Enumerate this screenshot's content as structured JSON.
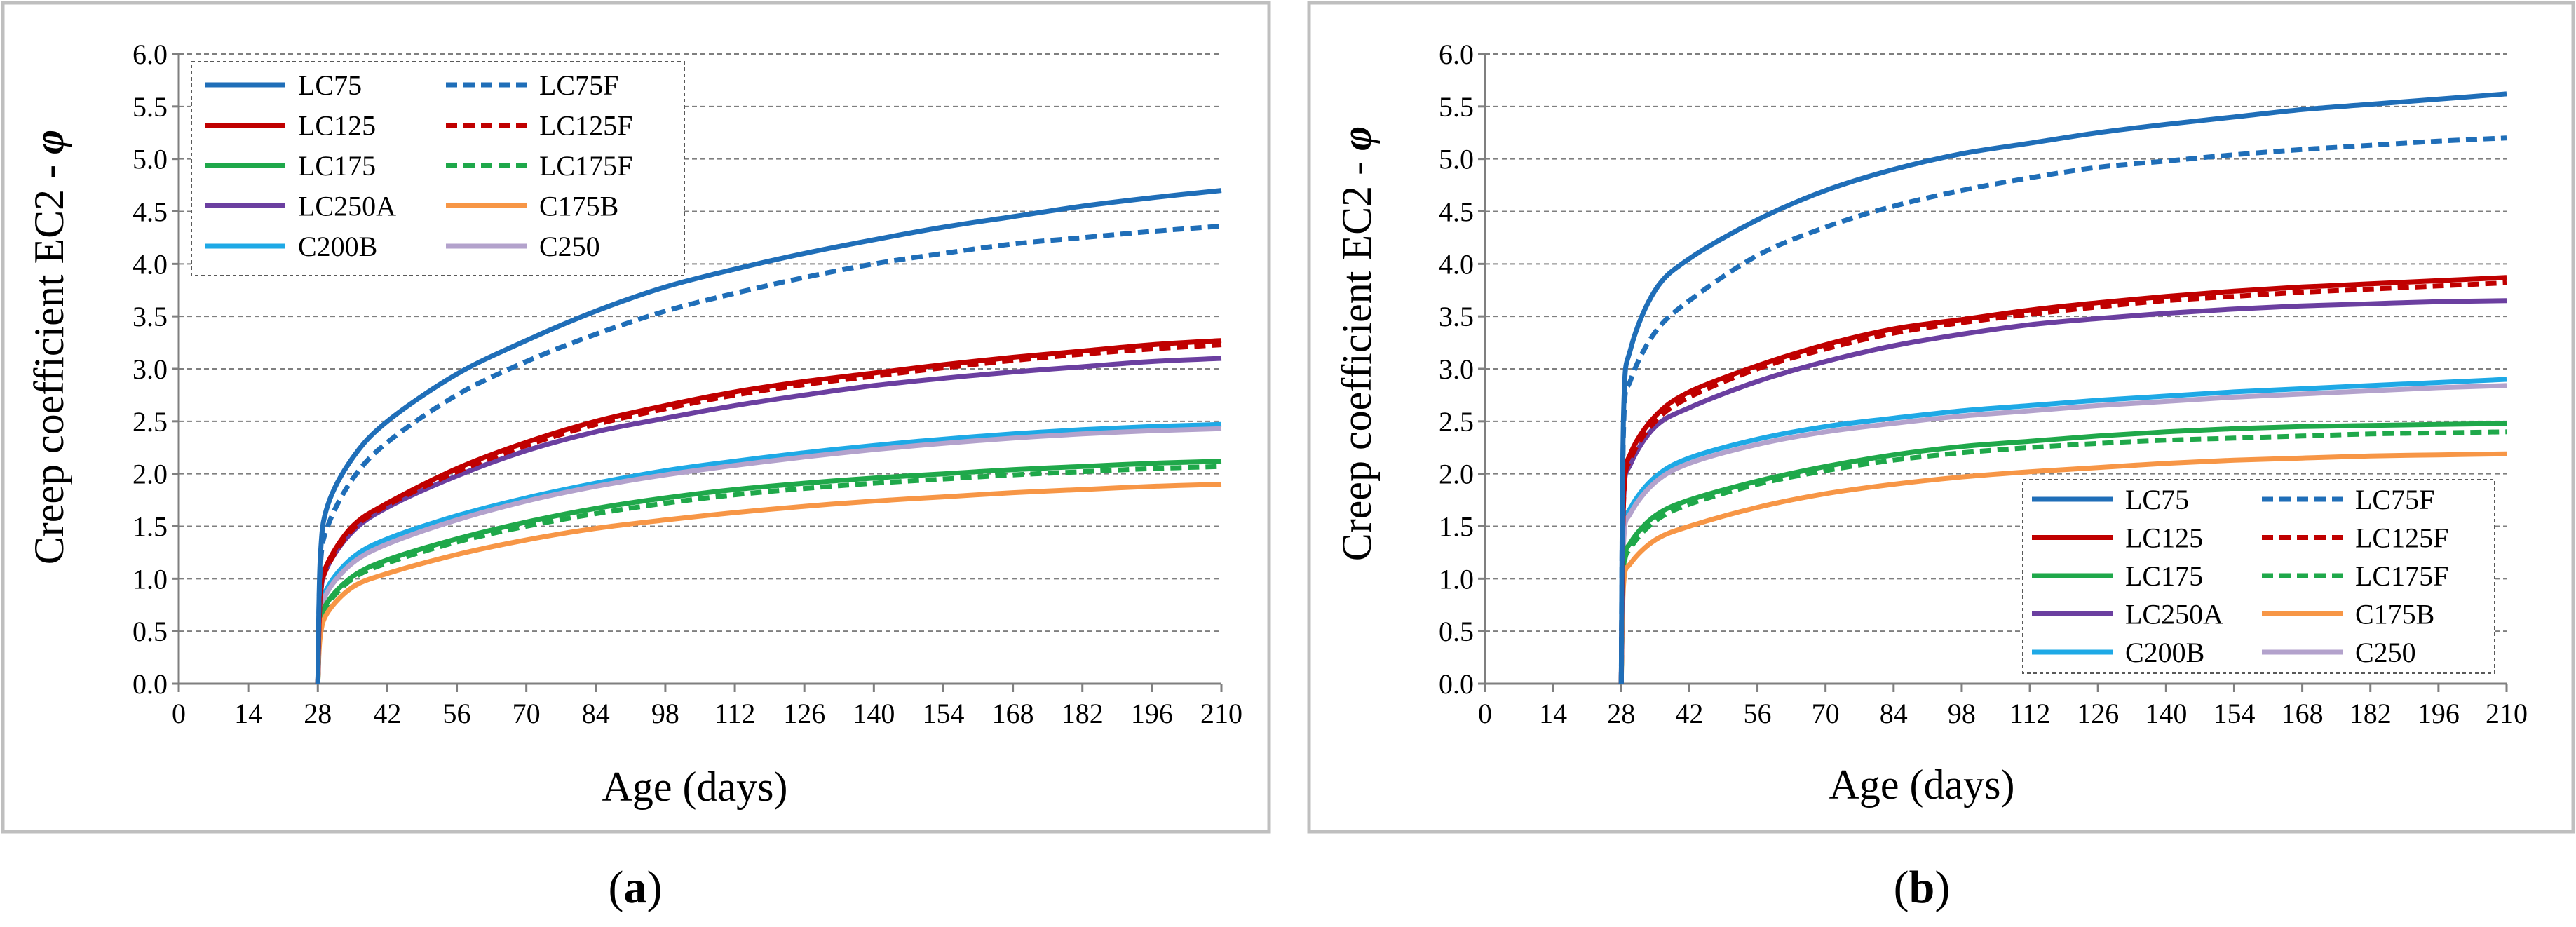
{
  "chart_data": [
    {
      "type": "line",
      "caption_letter": "a",
      "ylabel": "Creep coefficient EC2 - ",
      "ylabel_symbol": "φ",
      "xlabel": "Age (days)",
      "xlim": [
        0,
        210
      ],
      "ylim": [
        0,
        6.0
      ],
      "xticks": [
        "0",
        "14",
        "28",
        "42",
        "56",
        "70",
        "84",
        "98",
        "112",
        "126",
        "140",
        "154",
        "168",
        "182",
        "196",
        "210"
      ],
      "yticks": [
        "0.0",
        "0.5",
        "1.0",
        "1.5",
        "2.0",
        "2.5",
        "3.0",
        "3.5",
        "4.0",
        "4.5",
        "5.0",
        "5.5",
        "6.0"
      ],
      "grid": "horizontal dashed",
      "legend_position": "top-left",
      "x": [
        28,
        28.5,
        30,
        35,
        42,
        56,
        70,
        84,
        98,
        112,
        126,
        140,
        154,
        168,
        182,
        196,
        210
      ],
      "series": [
        {
          "name": "LC75",
          "color": "#1F6EB8",
          "dash": false,
          "values": [
            0,
            1.2,
            1.7,
            2.15,
            2.5,
            2.95,
            3.27,
            3.55,
            3.78,
            3.95,
            4.1,
            4.23,
            4.35,
            4.45,
            4.55,
            4.63,
            4.7
          ]
        },
        {
          "name": "LC75F",
          "color": "#1F6EB8",
          "dash": true,
          "values": [
            0,
            1.1,
            1.5,
            1.95,
            2.3,
            2.75,
            3.07,
            3.33,
            3.55,
            3.72,
            3.87,
            4.0,
            4.1,
            4.19,
            4.25,
            4.31,
            4.36
          ]
        },
        {
          "name": "LC125",
          "color": "#C00000",
          "dash": false,
          "values": [
            0,
            0.85,
            1.15,
            1.5,
            1.72,
            2.05,
            2.3,
            2.5,
            2.65,
            2.78,
            2.88,
            2.96,
            3.04,
            3.11,
            3.17,
            3.23,
            3.27
          ]
        },
        {
          "name": "LC125F",
          "color": "#C00000",
          "dash": true,
          "values": [
            0,
            0.82,
            1.12,
            1.47,
            1.7,
            2.02,
            2.27,
            2.47,
            2.62,
            2.75,
            2.85,
            2.93,
            3.01,
            3.08,
            3.14,
            3.19,
            3.23
          ]
        },
        {
          "name": "LC175",
          "color": "#1FA84A",
          "dash": false,
          "values": [
            0,
            0.55,
            0.78,
            1.02,
            1.18,
            1.38,
            1.54,
            1.67,
            1.77,
            1.85,
            1.91,
            1.96,
            2.0,
            2.04,
            2.07,
            2.1,
            2.12
          ]
        },
        {
          "name": "LC175F",
          "color": "#1FA84A",
          "dash": true,
          "values": [
            0,
            0.55,
            0.76,
            1.0,
            1.15,
            1.35,
            1.5,
            1.62,
            1.72,
            1.8,
            1.86,
            1.91,
            1.95,
            1.99,
            2.02,
            2.05,
            2.07
          ]
        },
        {
          "name": "LC250A",
          "color": "#6B3FA0",
          "dash": false,
          "values": [
            0,
            0.82,
            1.12,
            1.45,
            1.68,
            1.98,
            2.22,
            2.4,
            2.53,
            2.65,
            2.75,
            2.84,
            2.91,
            2.97,
            3.02,
            3.07,
            3.1
          ]
        },
        {
          "name": "C175B",
          "color": "#F79646",
          "dash": false,
          "values": [
            0,
            0.45,
            0.68,
            0.92,
            1.05,
            1.23,
            1.37,
            1.48,
            1.56,
            1.63,
            1.69,
            1.74,
            1.78,
            1.82,
            1.85,
            1.88,
            1.9
          ]
        },
        {
          "name": "C200B",
          "color": "#1EA9E6",
          "dash": false,
          "values": [
            0,
            0.65,
            0.92,
            1.2,
            1.38,
            1.6,
            1.77,
            1.91,
            2.03,
            2.12,
            2.2,
            2.27,
            2.33,
            2.38,
            2.42,
            2.45,
            2.47
          ]
        },
        {
          "name": "C250",
          "color": "#B3A2CC",
          "dash": false,
          "values": [
            0,
            0.62,
            0.88,
            1.15,
            1.33,
            1.56,
            1.74,
            1.88,
            1.99,
            2.08,
            2.16,
            2.23,
            2.29,
            2.34,
            2.38,
            2.41,
            2.43
          ]
        }
      ]
    },
    {
      "type": "line",
      "caption_letter": "b",
      "ylabel": "Creep coefficient EC2 - ",
      "ylabel_symbol": "φ",
      "xlabel": "Age (days)",
      "xlim": [
        0,
        210
      ],
      "ylim": [
        0,
        6.0
      ],
      "xticks": [
        "0",
        "14",
        "28",
        "42",
        "56",
        "70",
        "84",
        "98",
        "112",
        "126",
        "140",
        "154",
        "168",
        "182",
        "196",
        "210"
      ],
      "yticks": [
        "0.0",
        "0.5",
        "1.0",
        "1.5",
        "2.0",
        "2.5",
        "3.0",
        "3.5",
        "4.0",
        "4.5",
        "5.0",
        "5.5",
        "6.0"
      ],
      "grid": "horizontal dashed",
      "legend_position": "bottom-right",
      "x": [
        28,
        28.5,
        30,
        35,
        42,
        56,
        70,
        84,
        98,
        112,
        126,
        140,
        154,
        168,
        182,
        196,
        210
      ],
      "series": [
        {
          "name": "LC75",
          "color": "#1F6EB8",
          "dash": false,
          "values": [
            0,
            2.6,
            3.2,
            3.75,
            4.05,
            4.42,
            4.7,
            4.9,
            5.05,
            5.15,
            5.25,
            5.33,
            5.4,
            5.47,
            5.52,
            5.57,
            5.62
          ]
        },
        {
          "name": "LC75F",
          "color": "#1F6EB8",
          "dash": true,
          "values": [
            0,
            2.45,
            2.9,
            3.35,
            3.65,
            4.08,
            4.35,
            4.55,
            4.7,
            4.82,
            4.92,
            4.98,
            5.04,
            5.09,
            5.13,
            5.17,
            5.2
          ]
        },
        {
          "name": "LC125",
          "color": "#C00000",
          "dash": false,
          "values": [
            0,
            1.8,
            2.2,
            2.55,
            2.78,
            3.03,
            3.23,
            3.38,
            3.47,
            3.56,
            3.63,
            3.69,
            3.74,
            3.78,
            3.81,
            3.84,
            3.87
          ]
        },
        {
          "name": "LC125F",
          "color": "#C00000",
          "dash": true,
          "values": [
            0,
            1.75,
            2.15,
            2.5,
            2.73,
            3.0,
            3.19,
            3.34,
            3.44,
            3.52,
            3.59,
            3.65,
            3.69,
            3.73,
            3.76,
            3.79,
            3.82
          ]
        },
        {
          "name": "LC175",
          "color": "#1FA84A",
          "dash": false,
          "values": [
            0,
            1.1,
            1.35,
            1.6,
            1.75,
            1.93,
            2.07,
            2.18,
            2.26,
            2.31,
            2.36,
            2.4,
            2.43,
            2.45,
            2.46,
            2.47,
            2.48
          ]
        },
        {
          "name": "LC175F",
          "color": "#1FA84A",
          "dash": true,
          "values": [
            0,
            1.05,
            1.3,
            1.55,
            1.71,
            1.9,
            2.03,
            2.13,
            2.2,
            2.25,
            2.29,
            2.32,
            2.34,
            2.36,
            2.38,
            2.39,
            2.4
          ]
        },
        {
          "name": "LC250A",
          "color": "#6B3FA0",
          "dash": false,
          "values": [
            0,
            1.75,
            2.1,
            2.45,
            2.63,
            2.88,
            3.07,
            3.22,
            3.33,
            3.42,
            3.48,
            3.53,
            3.57,
            3.6,
            3.62,
            3.64,
            3.65
          ]
        },
        {
          "name": "C175B",
          "color": "#F79646",
          "dash": false,
          "values": [
            0,
            0.95,
            1.15,
            1.37,
            1.5,
            1.68,
            1.81,
            1.9,
            1.97,
            2.02,
            2.06,
            2.1,
            2.13,
            2.15,
            2.17,
            2.18,
            2.19
          ]
        },
        {
          "name": "C200B",
          "color": "#1EA9E6",
          "dash": false,
          "values": [
            0,
            1.4,
            1.68,
            1.97,
            2.15,
            2.33,
            2.45,
            2.53,
            2.6,
            2.65,
            2.7,
            2.74,
            2.78,
            2.81,
            2.84,
            2.87,
            2.9
          ]
        },
        {
          "name": "C250",
          "color": "#B3A2CC",
          "dash": false,
          "values": [
            0,
            1.35,
            1.63,
            1.92,
            2.1,
            2.28,
            2.4,
            2.48,
            2.55,
            2.6,
            2.65,
            2.69,
            2.73,
            2.76,
            2.79,
            2.82,
            2.84
          ]
        }
      ]
    }
  ]
}
